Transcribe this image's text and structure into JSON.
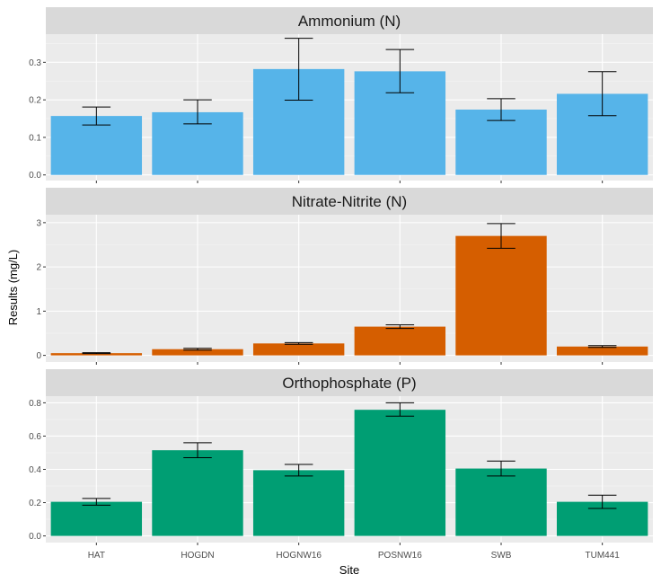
{
  "chart_data": {
    "type": "bar",
    "xlabel": "Site",
    "ylabel": "Results (mg/L)",
    "categories": [
      "HAT",
      "HOGDN",
      "HOGNW16",
      "POSNW16",
      "SWB",
      "TUM441"
    ],
    "panels": [
      {
        "title": "Ammonium (N)",
        "color": "#56B4E9",
        "ylim": [
          -0.015,
          0.375
        ],
        "yticks": [
          0.0,
          0.1,
          0.2,
          0.3
        ],
        "ytick_labels": [
          "0.0",
          "0.1",
          "0.2",
          "0.3"
        ],
        "values": [
          0.157,
          0.167,
          0.282,
          0.276,
          0.174,
          0.216
        ],
        "error_low": [
          0.133,
          0.136,
          0.199,
          0.219,
          0.145,
          0.158
        ],
        "error_high": [
          0.181,
          0.2,
          0.364,
          0.334,
          0.203,
          0.275
        ]
      },
      {
        "title": "Nitrate-Nitrite (N)",
        "color": "#D55E00",
        "ylim": [
          -0.15,
          3.18
        ],
        "yticks": [
          0,
          1,
          2,
          3
        ],
        "ytick_labels": [
          "0",
          "1",
          "2",
          "3"
        ],
        "values": [
          0.05,
          0.14,
          0.27,
          0.65,
          2.7,
          0.2
        ],
        "error_low": [
          0.04,
          0.12,
          0.25,
          0.61,
          2.42,
          0.18
        ],
        "error_high": [
          0.06,
          0.16,
          0.29,
          0.69,
          2.98,
          0.22
        ]
      },
      {
        "title": "Orthophosphate (P)",
        "color": "#009E73",
        "ylim": [
          -0.04,
          0.84
        ],
        "yticks": [
          0.0,
          0.2,
          0.4,
          0.6,
          0.8
        ],
        "ytick_labels": [
          "0.0",
          "0.2",
          "0.4",
          "0.6",
          "0.8"
        ],
        "values": [
          0.205,
          0.515,
          0.395,
          0.758,
          0.405,
          0.205
        ],
        "error_low": [
          0.185,
          0.47,
          0.36,
          0.72,
          0.36,
          0.165
        ],
        "error_high": [
          0.225,
          0.56,
          0.43,
          0.8,
          0.45,
          0.245
        ]
      }
    ]
  }
}
